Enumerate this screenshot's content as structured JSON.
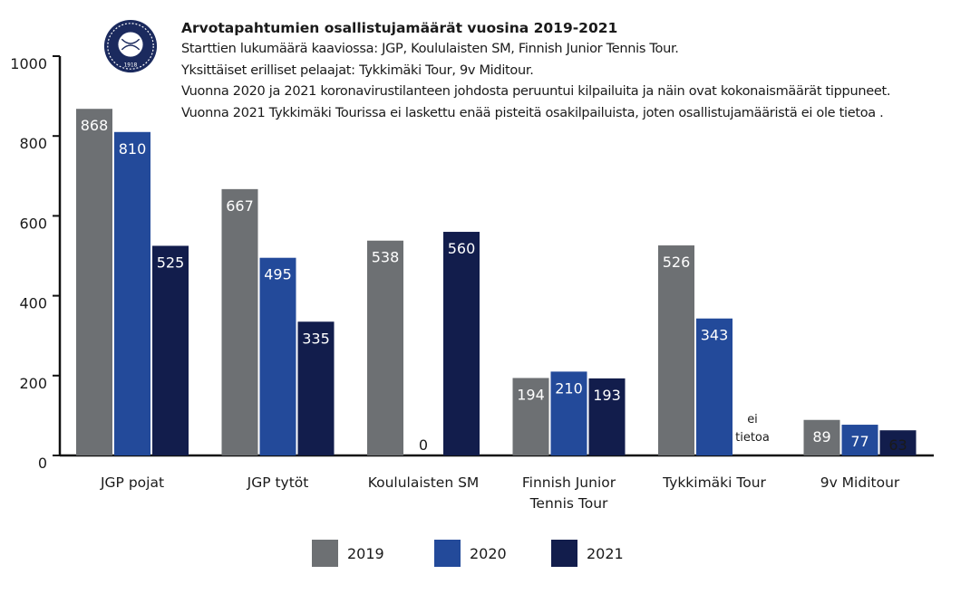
{
  "colors": {
    "s2019": "#6d7073",
    "s2020": "#234a9a",
    "s2021": "#121d4c",
    "axis": "#111111"
  },
  "logo": {
    "name": "club-emblem",
    "text": "1918"
  },
  "header": {
    "title": "Arvotapahtumien osallistujamäärät vuosina 2019-2021",
    "lines": [
      "Starttien lukumäärä kaaviossa: JGP, Koululaisten SM, Finnish Junior Tennis Tour.",
      "Yksittäiset erilliset pelaajat: Tykkimäki Tour, 9v Miditour.",
      "Vuonna 2020 ja 2021 koronavirustilanteen johdosta peruuntui kilpailuita ja näin ovat kokonaismäärät tippuneet.",
      "Vuonna 2021 Tykkimäki Tourissa ei laskettu enää pisteitä osakilpailuista, joten osallistujamääristä ei ole tietoa ."
    ]
  },
  "chart_data": {
    "type": "bar",
    "title": "Arvotapahtumien osallistujamäärät vuosina 2019-2021",
    "categories": [
      [
        "JGP pojat"
      ],
      [
        "JGP tytöt"
      ],
      [
        "Koululaisten SM"
      ],
      [
        "Finnish Junior",
        "Tennis Tour"
      ],
      [
        "Tykkimäki Tour"
      ],
      [
        "9v Miditour"
      ]
    ],
    "series": [
      {
        "name": "2019",
        "values": [
          868,
          667,
          538,
          194,
          526,
          89
        ]
      },
      {
        "name": "2020",
        "values": [
          810,
          495,
          0,
          210,
          343,
          77
        ]
      },
      {
        "name": "2021",
        "values": [
          525,
          335,
          560,
          193,
          null,
          63
        ]
      }
    ],
    "missing_label": [
      "ei",
      "tietoa"
    ],
    "y_ticks": [
      0,
      200,
      400,
      600,
      800,
      1000
    ],
    "ylim": [
      0,
      1000
    ],
    "xlabel": "",
    "ylabel": "",
    "legend": "bottom",
    "grid": false
  }
}
